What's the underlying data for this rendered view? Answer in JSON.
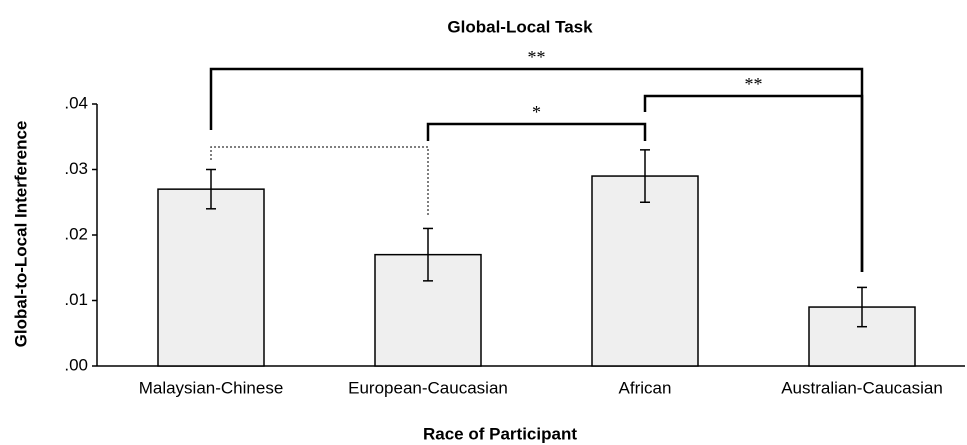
{
  "chart_data": {
    "type": "bar",
    "title": "Global-Local Task",
    "x_label": "Race of Participant",
    "y_label": "Global-to-Local Interference",
    "categories": [
      "Malaysian-Chinese",
      "European-Caucasian",
      "African",
      "Australian-Caucasian"
    ],
    "values": [
      0.027,
      0.017,
      0.029,
      0.009
    ],
    "errors": [
      0.003,
      0.004,
      0.004,
      0.003
    ],
    "color": "#efefef",
    "ylim": [
      0,
      0.04
    ],
    "yticks": [
      {
        "value": 0,
        "label": ".00"
      },
      {
        "value": 0.01,
        "label": ".01"
      },
      {
        "value": 0.02,
        "label": ".02"
      },
      {
        "value": 0.03,
        "label": ".03"
      },
      {
        "value": 0.04,
        "label": ".04"
      }
    ],
    "grid": false,
    "annotations": [
      {
        "from": 0,
        "to": 3,
        "label": "**"
      },
      {
        "from": 2,
        "to": 3,
        "label": "**"
      },
      {
        "from": 1,
        "to": 2,
        "label": "*"
      },
      {
        "from": 0,
        "to": 1,
        "style": "dotted"
      }
    ]
  }
}
